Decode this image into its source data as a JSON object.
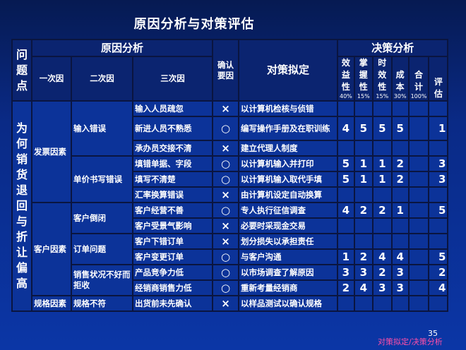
{
  "title": "原因分析与对策评估",
  "header": {
    "problem": "问题点",
    "cause_analysis": "原因分析",
    "primary": "一次因",
    "secondary": "二次因",
    "tertiary": "三次因",
    "confirm": "确认要因",
    "countermeasure": "对策拟定",
    "decision_analysis": "决策分析",
    "criteria": [
      {
        "label": "效益性",
        "weight": "40%"
      },
      {
        "label": "掌握性",
        "weight": "15%"
      },
      {
        "label": "时效性",
        "weight": "15%"
      },
      {
        "label": "成本",
        "weight": "30%"
      },
      {
        "label": "合计",
        "weight": "100%"
      },
      {
        "label": "评估",
        "weight": ""
      }
    ]
  },
  "problem": "为何销货退回与折让偏高",
  "causes": [
    {
      "label": "发票因素",
      "secondary": [
        {
          "label": "输入错误",
          "tertiary": [
            {
              "label": "输入人员疏忽",
              "confirm": "×",
              "countermeasure": "以计算机检核与侦错",
              "scores": [
                "",
                "",
                "",
                "",
                "",
                ""
              ]
            },
            {
              "label": "新进人员不熟悉",
              "confirm": "○",
              "countermeasure": "编写操作手册及在职训练",
              "scores": [
                "4",
                "5",
                "5",
                "5",
                "",
                "1"
              ]
            },
            {
              "label": "承办员交接不清",
              "confirm": "×",
              "countermeasure": "建立代理人制度",
              "scores": [
                "",
                "",
                "",
                "",
                "",
                ""
              ]
            }
          ]
        },
        {
          "label": "单价书写错误",
          "tertiary": [
            {
              "label": "填错单据、字段",
              "confirm": "○",
              "countermeasure": "以计算机输入并打印",
              "scores": [
                "5",
                "1",
                "1",
                "2",
                "",
                "3"
              ]
            },
            {
              "label": "填写不清楚",
              "confirm": "○",
              "countermeasure": "以计算机输入取代手填",
              "scores": [
                "5",
                "1",
                "1",
                "2",
                "",
                "3"
              ]
            },
            {
              "label": "汇率换算错误",
              "confirm": "×",
              "countermeasure": "由计算机设定自动换算",
              "scores": [
                "",
                "",
                "",
                "",
                "",
                ""
              ]
            }
          ]
        }
      ]
    },
    {
      "label": "客户因素",
      "secondary": [
        {
          "label": "客户倒闭",
          "tertiary": [
            {
              "label": "客户经营不善",
              "confirm": "○",
              "countermeasure": "专人执行征信调查",
              "scores": [
                "4",
                "2",
                "2",
                "1",
                "",
                "5"
              ]
            },
            {
              "label": "客户受景气影响",
              "confirm": "×",
              "countermeasure": "必要时采现金交易",
              "scores": [
                "",
                "",
                "",
                "",
                "",
                ""
              ]
            }
          ]
        },
        {
          "label": "订单问题",
          "tertiary": [
            {
              "label": "客户下错订单",
              "confirm": "×",
              "countermeasure": "划分损失以承担责任",
              "scores": [
                "",
                "",
                "",
                "",
                "",
                ""
              ]
            },
            {
              "label": "客户变更订单",
              "confirm": "○",
              "countermeasure": "与客户沟通",
              "scores": [
                "1",
                "2",
                "4",
                "4",
                "",
                "5"
              ]
            }
          ]
        },
        {
          "label": "销售状况不好而拒收",
          "tertiary": [
            {
              "label": "产品竞争力低",
              "confirm": "○",
              "countermeasure": "以市场调查了解原因",
              "scores": [
                "3",
                "3",
                "2",
                "3",
                "",
                "2"
              ]
            },
            {
              "label": "经销商销售力低",
              "confirm": "○",
              "countermeasure": "重新考量经销商",
              "scores": [
                "2",
                "4",
                "3",
                "3",
                "",
                "4"
              ]
            }
          ]
        }
      ]
    },
    {
      "label": "规格因素",
      "secondary": [
        {
          "label": "规格不符",
          "tertiary": [
            {
              "label": "出货前未先确认",
              "confirm": "×",
              "countermeasure": "以样品测试以确认规格",
              "scores": [
                "",
                "",
                "",
                "",
                "",
                ""
              ]
            }
          ]
        }
      ]
    }
  ],
  "page_number": "35",
  "footer": "对策拟定/决策分析"
}
